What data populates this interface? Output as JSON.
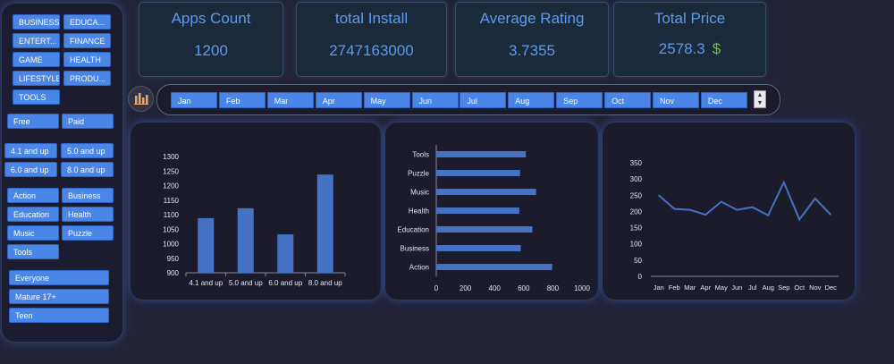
{
  "category_slicer": [
    "BUSINESS",
    "EDUCA...",
    "ENTERT...",
    "FINANCE",
    "GAME",
    "HEALTH",
    "LIFESTYLE",
    "PRODU...",
    "TOOLS"
  ],
  "type_slicer": [
    "Free",
    "Paid"
  ],
  "rating_slicer": [
    "4.1 and up",
    "5.0 and up",
    "6.0 and up",
    "8.0 and up"
  ],
  "genre_slicer": [
    "Action",
    "Business",
    "Education",
    "Health",
    "Music",
    "Puzzle",
    "Tools"
  ],
  "content_slicer": [
    "Everyone",
    "Mature 17+",
    "Teen"
  ],
  "kpis": {
    "apps_count": {
      "title": "Apps Count",
      "value": "1200"
    },
    "total_install": {
      "title": "total Install",
      "value": "2747163000"
    },
    "average_rating": {
      "title": "Average Rating",
      "value": "3.7355"
    },
    "total_price": {
      "title": "Total Price",
      "value": "2578.3",
      "currency": "$"
    }
  },
  "timeline": {
    "months": [
      "Jan",
      "Feb",
      "Mar",
      "Apr",
      "May",
      "Jun",
      "Jul",
      "Aug",
      "Sep",
      "Oct",
      "Nov",
      "Dec"
    ],
    "icon": "bar-chart-icon"
  },
  "chart_data": [
    {
      "type": "bar",
      "categories": [
        "4.1 and up",
        "5.0 and up",
        "6.0 and up",
        "8.0 and up"
      ],
      "values": [
        1088,
        1122,
        1032,
        1238
      ],
      "ylim": [
        900,
        1300
      ],
      "yticks": [
        "900",
        "950",
        "1000",
        "1050",
        "1100",
        "1150",
        "1200",
        "1250",
        "1300"
      ]
    },
    {
      "type": "bar",
      "orientation": "horizontal",
      "categories": [
        "Tools",
        "Puzzle",
        "Music",
        "Health",
        "Education",
        "Business",
        "Action"
      ],
      "values": [
        615,
        575,
        685,
        570,
        660,
        580,
        795
      ],
      "xlim": [
        0,
        1000
      ],
      "xticks": [
        "0",
        "200",
        "400",
        "600",
        "800",
        "1000"
      ]
    },
    {
      "type": "line",
      "categories": [
        "Jan",
        "Feb",
        "Mar",
        "Apr",
        "May",
        "Jun",
        "Jul",
        "Aug",
        "Sep",
        "Oct",
        "Nov",
        "Dec"
      ],
      "values": [
        250,
        208,
        205,
        190,
        230,
        205,
        213,
        188,
        290,
        175,
        240,
        190
      ],
      "ylim": [
        0,
        350
      ],
      "yticks": [
        "0",
        "50",
        "100",
        "150",
        "200",
        "250",
        "300",
        "350"
      ]
    }
  ],
  "colors": {
    "accent": "#4a86e8",
    "kpi_text": "#5b9cf0",
    "bar": "#4472c4",
    "dollar": "#70c040"
  }
}
